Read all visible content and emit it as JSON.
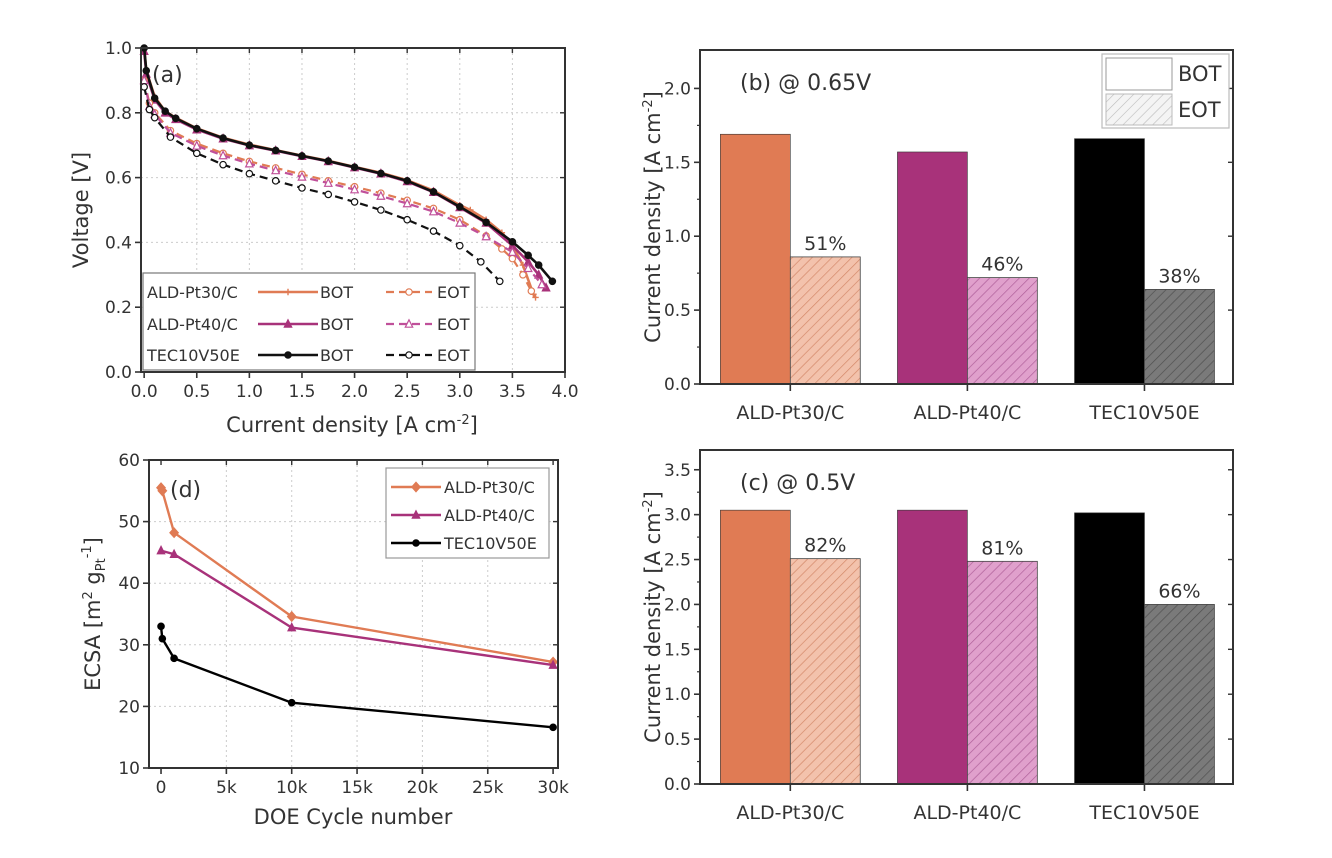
{
  "chart_data": [
    {
      "panel": "a",
      "type": "line",
      "panel_label": "(a)",
      "xlabel": {
        "text": "Current density [A cm",
        "sup": "-2",
        "end": "]"
      },
      "ylabel": {
        "text": "Voltage [V]"
      },
      "xlim": [
        -0.03,
        4.0
      ],
      "ylim": [
        0.0,
        1.0
      ],
      "xticks": [
        0,
        0.5,
        1.0,
        1.5,
        2.0,
        2.5,
        3.0,
        3.5,
        4.0
      ],
      "xtick_labels": [
        "0.0",
        "0.5",
        "1.0",
        "1.5",
        "2.0",
        "2.5",
        "3.0",
        "3.5",
        "4.0"
      ],
      "yticks": [
        0,
        0.2,
        0.4,
        0.6,
        0.8,
        1.0
      ],
      "ytick_labels": [
        "0.0",
        "0.2",
        "0.4",
        "0.6",
        "0.8",
        "1.0"
      ],
      "grid": true,
      "legend_position": "bottom-left",
      "legend": {
        "samples": [
          "ALD-Pt30/C",
          "ALD-Pt40/C",
          "TEC10V50E"
        ],
        "conditions": [
          "BOT",
          "EOT"
        ]
      },
      "series": [
        {
          "sample": "ALD-Pt30/C",
          "condition": "BOT",
          "color": "#E07B54",
          "dashed": false,
          "marker": "plus",
          "points": [
            [
              0,
              1.0
            ],
            [
              0.02,
              0.93
            ],
            [
              0.1,
              0.85
            ],
            [
              0.2,
              0.805
            ],
            [
              0.3,
              0.785
            ],
            [
              0.5,
              0.752
            ],
            [
              0.75,
              0.723
            ],
            [
              1.0,
              0.702
            ],
            [
              1.25,
              0.685
            ],
            [
              1.5,
              0.668
            ],
            [
              1.75,
              0.652
            ],
            [
              2.0,
              0.633
            ],
            [
              2.25,
              0.615
            ],
            [
              2.5,
              0.592
            ],
            [
              2.75,
              0.56
            ],
            [
              3.0,
              0.515
            ],
            [
              3.1,
              0.5
            ],
            [
              3.25,
              0.47
            ],
            [
              3.4,
              0.43
            ],
            [
              3.5,
              0.39
            ],
            [
              3.6,
              0.33
            ],
            [
              3.7,
              0.24
            ],
            [
              3.72,
              0.23
            ]
          ]
        },
        {
          "sample": "ALD-Pt40/C",
          "condition": "BOT",
          "color": "#A8327A",
          "dashed": false,
          "marker": "triangle",
          "points": [
            [
              0,
              0.99
            ],
            [
              0.02,
              0.92
            ],
            [
              0.1,
              0.84
            ],
            [
              0.2,
              0.8
            ],
            [
              0.3,
              0.78
            ],
            [
              0.5,
              0.748
            ],
            [
              0.75,
              0.72
            ],
            [
              1.0,
              0.699
            ],
            [
              1.25,
              0.683
            ],
            [
              1.5,
              0.666
            ],
            [
              1.75,
              0.65
            ],
            [
              2.0,
              0.631
            ],
            [
              2.25,
              0.612
            ],
            [
              2.5,
              0.588
            ],
            [
              2.75,
              0.555
            ],
            [
              3.0,
              0.508
            ],
            [
              3.25,
              0.46
            ],
            [
              3.5,
              0.39
            ],
            [
              3.65,
              0.34
            ],
            [
              3.75,
              0.3
            ],
            [
              3.82,
              0.26
            ]
          ]
        },
        {
          "sample": "TEC10V50E",
          "condition": "BOT",
          "color": "#111111",
          "dashed": false,
          "marker": "circle",
          "points": [
            [
              0,
              1.0
            ],
            [
              0.02,
              0.93
            ],
            [
              0.1,
              0.845
            ],
            [
              0.2,
              0.805
            ],
            [
              0.3,
              0.783
            ],
            [
              0.5,
              0.751
            ],
            [
              0.75,
              0.722
            ],
            [
              1.0,
              0.7
            ],
            [
              1.25,
              0.684
            ],
            [
              1.5,
              0.667
            ],
            [
              1.75,
              0.651
            ],
            [
              2.0,
              0.632
            ],
            [
              2.25,
              0.613
            ],
            [
              2.5,
              0.59
            ],
            [
              2.75,
              0.556
            ],
            [
              3.0,
              0.51
            ],
            [
              3.25,
              0.462
            ],
            [
              3.5,
              0.402
            ],
            [
              3.65,
              0.36
            ],
            [
              3.75,
              0.33
            ],
            [
              3.88,
              0.28
            ]
          ]
        },
        {
          "sample": "ALD-Pt30/C",
          "condition": "EOT",
          "color": "#E07B54",
          "dashed": true,
          "marker": "open-circle",
          "points": [
            [
              0,
              0.9
            ],
            [
              0.05,
              0.83
            ],
            [
              0.1,
              0.8
            ],
            [
              0.25,
              0.745
            ],
            [
              0.5,
              0.705
            ],
            [
              0.75,
              0.675
            ],
            [
              1.0,
              0.65
            ],
            [
              1.25,
              0.63
            ],
            [
              1.5,
              0.61
            ],
            [
              1.75,
              0.59
            ],
            [
              2.0,
              0.572
            ],
            [
              2.25,
              0.552
            ],
            [
              2.5,
              0.53
            ],
            [
              2.75,
              0.505
            ],
            [
              3.0,
              0.47
            ],
            [
              3.25,
              0.42
            ],
            [
              3.4,
              0.38
            ],
            [
              3.5,
              0.35
            ],
            [
              3.6,
              0.3
            ],
            [
              3.68,
              0.25
            ]
          ]
        },
        {
          "sample": "ALD-Pt40/C",
          "condition": "EOT",
          "color": "#C0509A",
          "dashed": true,
          "marker": "open-triangle",
          "points": [
            [
              0,
              0.9
            ],
            [
              0.05,
              0.82
            ],
            [
              0.1,
              0.795
            ],
            [
              0.25,
              0.738
            ],
            [
              0.5,
              0.698
            ],
            [
              0.75,
              0.668
            ],
            [
              1.0,
              0.643
            ],
            [
              1.25,
              0.622
            ],
            [
              1.5,
              0.602
            ],
            [
              1.75,
              0.583
            ],
            [
              2.0,
              0.563
            ],
            [
              2.25,
              0.543
            ],
            [
              2.5,
              0.52
            ],
            [
              2.75,
              0.495
            ],
            [
              3.0,
              0.46
            ],
            [
              3.25,
              0.418
            ],
            [
              3.5,
              0.37
            ],
            [
              3.65,
              0.32
            ],
            [
              3.78,
              0.27
            ]
          ]
        },
        {
          "sample": "TEC10V50E",
          "condition": "EOT",
          "color": "#111111",
          "dashed": true,
          "marker": "open-circle",
          "points": [
            [
              0,
              0.88
            ],
            [
              0.05,
              0.81
            ],
            [
              0.1,
              0.785
            ],
            [
              0.25,
              0.725
            ],
            [
              0.5,
              0.675
            ],
            [
              0.75,
              0.64
            ],
            [
              1.0,
              0.612
            ],
            [
              1.25,
              0.59
            ],
            [
              1.5,
              0.568
            ],
            [
              1.75,
              0.548
            ],
            [
              2.0,
              0.525
            ],
            [
              2.25,
              0.5
            ],
            [
              2.5,
              0.47
            ],
            [
              2.75,
              0.435
            ],
            [
              3.0,
              0.39
            ],
            [
              3.2,
              0.34
            ],
            [
              3.38,
              0.28
            ]
          ]
        }
      ]
    },
    {
      "panel": "b",
      "type": "bar",
      "panel_label": "(b) @ 0.65V",
      "ylabel": {
        "text": "Current density [A cm",
        "sup": "-2",
        "end": "]"
      },
      "categories": [
        "ALD-Pt30/C",
        "ALD-Pt40/C",
        "TEC10V50E"
      ],
      "ylim": [
        0,
        2.26
      ],
      "yticks": [
        0,
        0.5,
        1.0,
        1.5,
        2.0
      ],
      "ytick_labels": [
        "0.0",
        "0.5",
        "1.0",
        "1.5",
        "2.0"
      ],
      "grid": false,
      "legend_position": "top-right",
      "legend": [
        "BOT",
        "EOT"
      ],
      "series": [
        {
          "name": "BOT",
          "values": [
            1.69,
            1.57,
            1.66
          ],
          "colors": [
            "#E07B54",
            "#A8327A",
            "#000000"
          ]
        },
        {
          "name": "EOT",
          "values": [
            0.86,
            0.72,
            0.64
          ],
          "colors": [
            "#F3C2AC",
            "#E0A0CC",
            "#777777"
          ],
          "labels": [
            "51%",
            "46%",
            "38%"
          ]
        }
      ]
    },
    {
      "panel": "c",
      "type": "bar",
      "panel_label": "(c) @ 0.5V",
      "ylabel": {
        "text": "Current density [A cm",
        "sup": "-2",
        "end": "]"
      },
      "categories": [
        "ALD-Pt30/C",
        "ALD-Pt40/C",
        "TEC10V50E"
      ],
      "ylim": [
        0,
        3.72
      ],
      "yticks": [
        0,
        0.5,
        1.0,
        1.5,
        2.0,
        2.5,
        3.0,
        3.5
      ],
      "ytick_labels": [
        "0.0",
        "0.5",
        "1.0",
        "1.5",
        "2.0",
        "2.5",
        "3.0",
        "3.5"
      ],
      "grid": false,
      "series": [
        {
          "name": "BOT",
          "values": [
            3.05,
            3.05,
            3.02
          ],
          "colors": [
            "#E07B54",
            "#A8327A",
            "#000000"
          ]
        },
        {
          "name": "EOT",
          "values": [
            2.51,
            2.48,
            2.0
          ],
          "colors": [
            "#F3C2AC",
            "#E0A0CC",
            "#777777"
          ],
          "labels": [
            "82%",
            "81%",
            "66%"
          ]
        }
      ]
    },
    {
      "panel": "d",
      "type": "line",
      "panel_label": "(d)",
      "xlabel": {
        "text": "DOE Cycle number"
      },
      "ylabel": {
        "text": "ECSA [m",
        "sup1": "2",
        "mid": " g",
        "sub": "Pt",
        "sup2": "-1",
        "end": "]"
      },
      "xlim": [
        -920,
        30375
      ],
      "ylim": [
        10,
        60
      ],
      "xticks": [
        0,
        5000,
        10000,
        15000,
        20000,
        25000,
        30000
      ],
      "xtick_labels": [
        "0",
        "5k",
        "10k",
        "15k",
        "20k",
        "25k",
        "30k"
      ],
      "yticks": [
        10,
        20,
        30,
        40,
        50,
        60
      ],
      "ytick_labels": [
        "10",
        "20",
        "30",
        "40",
        "50",
        "60"
      ],
      "grid": true,
      "legend_position": "top-right",
      "series": [
        {
          "name": "ALD-Pt30/C",
          "color": "#E07B54",
          "marker": "diamond",
          "points": [
            [
              0,
              55.5
            ],
            [
              100,
              55.0
            ],
            [
              1000,
              48.2
            ],
            [
              10000,
              34.6
            ],
            [
              30000,
              27.2
            ]
          ]
        },
        {
          "name": "ALD-Pt40/C",
          "color": "#A8327A",
          "marker": "triangle",
          "points": [
            [
              0,
              45.3
            ],
            [
              1000,
              44.7
            ],
            [
              10000,
              32.8
            ],
            [
              30000,
              26.7
            ]
          ]
        },
        {
          "name": "TEC10V50E",
          "color": "#000000",
          "marker": "circle",
          "points": [
            [
              0,
              33.0
            ],
            [
              100,
              31.0
            ],
            [
              1000,
              27.8
            ],
            [
              10000,
              20.6
            ],
            [
              30000,
              16.6
            ]
          ]
        }
      ]
    }
  ]
}
